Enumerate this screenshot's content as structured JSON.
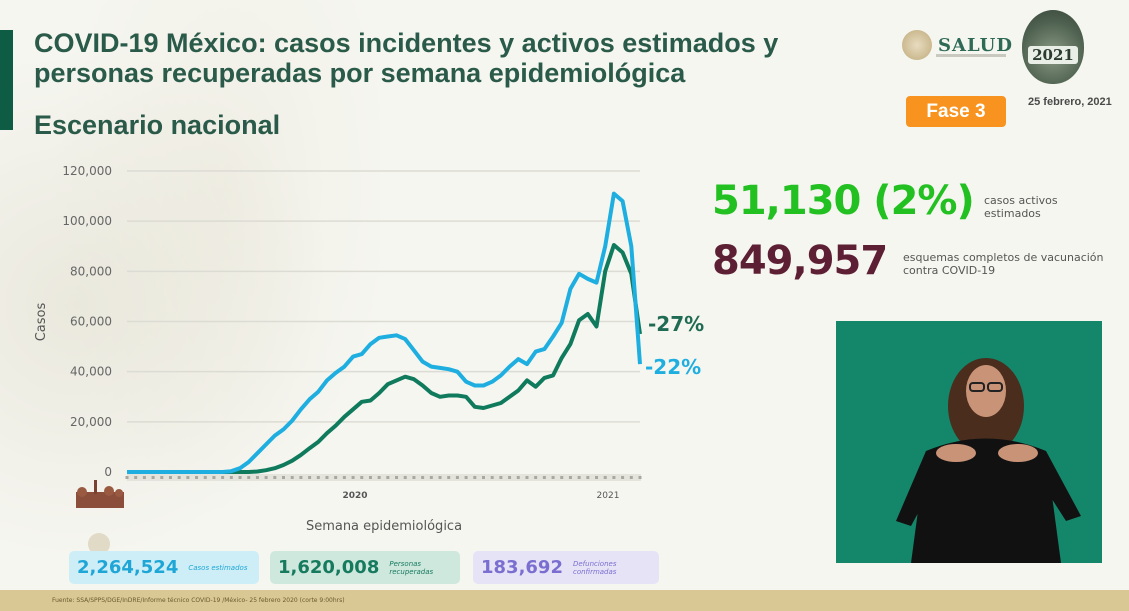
{
  "header": {
    "title": "COVID-19 México: casos incidentes y activos estimados y personas recuperadas por semana epidemiológica",
    "subtitle": "Escenario nacional",
    "logo_text": "SALUD",
    "emblem_year": "2021",
    "phase_badge": "Fase 3",
    "date": "25 febrero, 2021"
  },
  "stats": {
    "active_cases_value": "51,130 (2%)",
    "active_cases_label": "casos activos estimados",
    "vaccination_value": "849,957",
    "vaccination_label": "esquemas completos de vacunación contra COVID-19"
  },
  "totals": [
    {
      "value": "2,264,524",
      "label": "Casos estimados"
    },
    {
      "value": "1,620,008",
      "label": "Personas recuperadas"
    },
    {
      "value": "183,692",
      "label": "Defunciones confirmadas"
    }
  ],
  "footer": {
    "source": "Fuente: SSA/SPPS/DGE/InDRE/Informe técnico COVID-19 /México- 25 febrero 2020 (corte 9:00hrs)"
  },
  "colors": {
    "incident_line": "#1eaee0",
    "active_line": "#0f7a5c",
    "active_stat": "#22c021",
    "vaccination_stat": "#5d1f34",
    "phase_badge": "#f7931e",
    "title": "#2a5a49"
  },
  "chart_data": {
    "type": "line",
    "title": "COVID-19 México: casos incidentes y activos estimados y personas recuperadas por semana epidemiológica",
    "xlabel": "Semana epidemiológica",
    "ylabel": "Casos",
    "ylim": [
      0,
      120000
    ],
    "yticks": [
      0,
      20000,
      40000,
      60000,
      80000,
      100000,
      120000
    ],
    "ytick_labels": [
      "0",
      "20,000",
      "40,000",
      "60,000",
      "80,000",
      "100,000",
      "120,000"
    ],
    "year_labels": [
      "2020",
      "2021"
    ],
    "grid": true,
    "x": [
      1,
      2,
      3,
      4,
      5,
      6,
      7,
      8,
      9,
      10,
      11,
      12,
      13,
      14,
      15,
      16,
      17,
      18,
      19,
      20,
      21,
      22,
      23,
      24,
      25,
      26,
      27,
      28,
      29,
      30,
      31,
      32,
      33,
      34,
      35,
      36,
      37,
      38,
      39,
      40,
      41,
      42,
      43,
      44,
      45,
      46,
      47,
      48,
      49,
      50,
      51,
      52,
      53,
      54,
      55,
      56,
      57,
      58,
      59,
      60
    ],
    "series": [
      {
        "name": "Casos incidentes estimados",
        "color": "#1eaee0",
        "end_label": "-22%",
        "values": [
          0,
          0,
          0,
          0,
          0,
          0,
          0,
          0,
          0,
          0,
          0,
          0,
          300,
          1500,
          4000,
          7500,
          11000,
          14500,
          17000,
          20500,
          25000,
          29000,
          32000,
          36500,
          39500,
          42000,
          46000,
          47000,
          51000,
          53500,
          54000,
          54500,
          53000,
          48500,
          44000,
          42000,
          41500,
          41000,
          40000,
          36000,
          34500,
          34500,
          36000,
          38500,
          42000,
          45000,
          43000,
          48000,
          49000,
          54000,
          59500,
          73000,
          79000,
          77000,
          75500,
          90000,
          111000,
          108000,
          90000,
          43000
        ]
      },
      {
        "name": "Casos activos estimados",
        "color": "#0f7a5c",
        "end_label": "-27%",
        "values": [
          0,
          0,
          0,
          0,
          0,
          0,
          0,
          0,
          0,
          0,
          0,
          0,
          0,
          0,
          0,
          200,
          700,
          1500,
          2800,
          4500,
          6800,
          9500,
          12000,
          15500,
          18500,
          22000,
          25000,
          28000,
          28500,
          31500,
          35000,
          36500,
          38000,
          37000,
          34500,
          31500,
          30000,
          30500,
          30500,
          30000,
          26000,
          25500,
          26500,
          27500,
          30000,
          32500,
          36500,
          34000,
          37500,
          38500,
          45500,
          51000,
          60500,
          63000,
          58000,
          80000,
          90500,
          87500,
          79000,
          55000
        ]
      }
    ]
  },
  "interpreter": {
    "label": "Sign language interpreter video"
  }
}
